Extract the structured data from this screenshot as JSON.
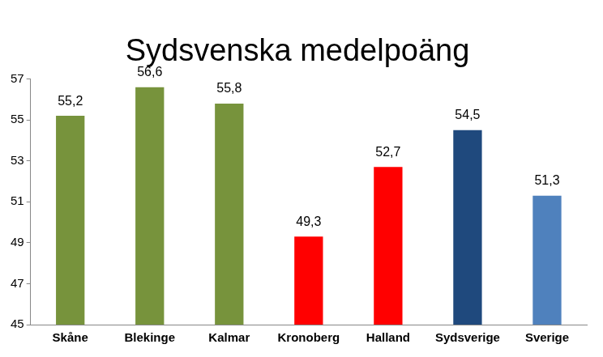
{
  "chart_data": {
    "type": "bar",
    "title": "Sydsvenska medelpoäng",
    "categories": [
      "Skåne",
      "Blekinge",
      "Kalmar",
      "Kronoberg",
      "Halland",
      "Sydsverige",
      "Sverige"
    ],
    "values": [
      55.2,
      56.6,
      55.8,
      49.3,
      52.7,
      54.5,
      51.3
    ],
    "value_labels": [
      "55,2",
      "56,6",
      "55,8",
      "49,3",
      "52,7",
      "54,5",
      "51,3"
    ],
    "colors": [
      "#77933c",
      "#77933c",
      "#77933c",
      "#ff0000",
      "#ff0000",
      "#1f497d",
      "#4f81bd"
    ],
    "ylim": [
      45,
      57
    ],
    "yticks": [
      45,
      47,
      49,
      51,
      53,
      55,
      57
    ],
    "grid": false,
    "data_labels": true
  }
}
